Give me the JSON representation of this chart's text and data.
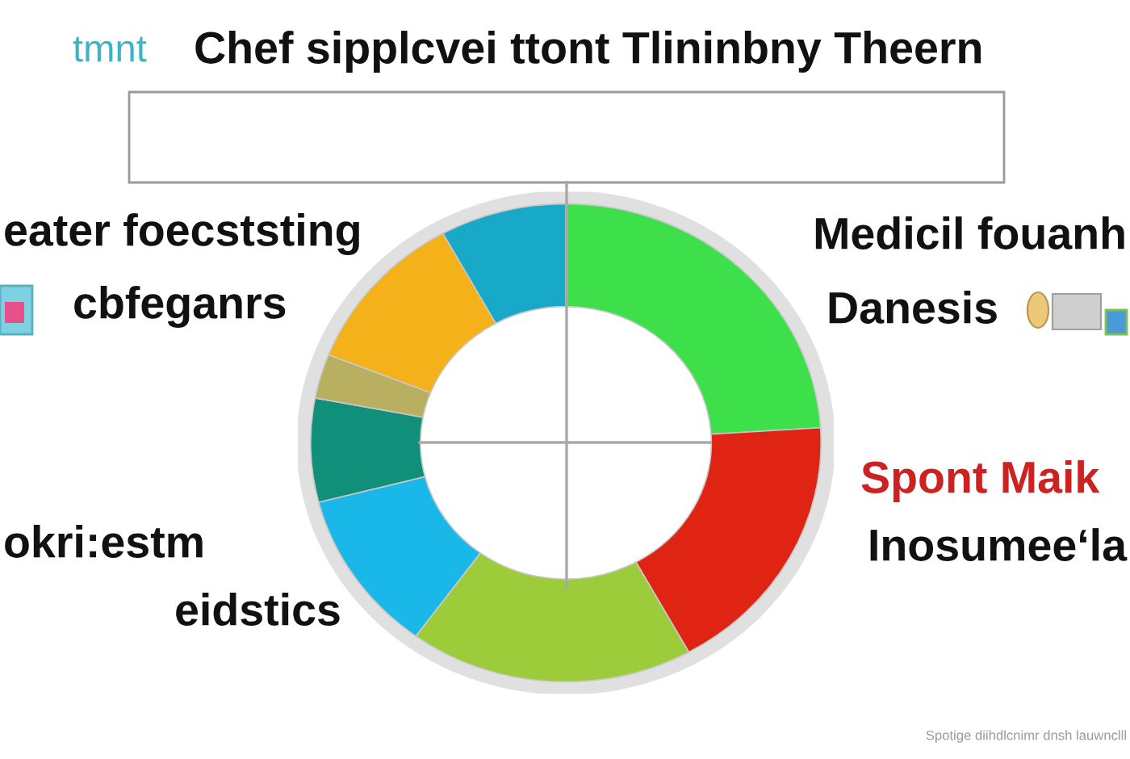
{
  "chart_data": {
    "type": "donut",
    "title": "Chef sipplcvei ttont Tlininbny Theern",
    "categories": [
      null,
      null,
      null,
      null,
      null,
      null,
      null,
      null
    ],
    "values": [
      24,
      18,
      18,
      11,
      7,
      3,
      11,
      8
    ],
    "colors": [
      "#3de04a",
      "#e02414",
      "#9ccc3a",
      "#1ab8e8",
      "#10907a",
      "#b8b060",
      "#f5b11a",
      "#18a8c8"
    ],
    "annotations": [
      "tmnt",
      "eater foecststing",
      "cbfeganrs",
      "Medicil fouanh",
      "Danesis",
      "Spont Maik",
      "Inosumee‘la",
      "okri:estm",
      "eidstics",
      "Spotige diihdlcnimr dnsh lauwnclll"
    ]
  }
}
